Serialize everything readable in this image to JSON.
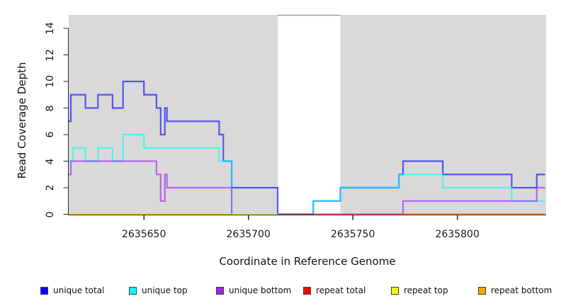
{
  "chart_data": {
    "type": "line",
    "step": true,
    "title": "",
    "xlabel": "Coordinate in Reference Genome",
    "ylabel": "Read Coverage Depth",
    "x_ticks": [
      2635650,
      2635700,
      2635750,
      2635800
    ],
    "y_ticks": [
      0,
      2,
      4,
      6,
      8,
      10,
      12,
      14
    ],
    "xlim": [
      2635614,
      2635842
    ],
    "ylim": [
      0,
      15
    ],
    "grid": false,
    "plot_bg_color": "#D9D9D9",
    "gap_region_x": [
      2635714,
      2635744
    ],
    "gap_region_color": "#FFFFFF",
    "line_alpha": 0.62,
    "legend_position": "bottom",
    "series": [
      {
        "name": "unique total",
        "color": "#0000FF",
        "paths": [
          [
            [
              2635614,
              7
            ],
            [
              2635615,
              9
            ],
            [
              2635622,
              8
            ],
            [
              2635628,
              9
            ],
            [
              2635635,
              8
            ],
            [
              2635640,
              10
            ],
            [
              2635650,
              9
            ],
            [
              2635656,
              8
            ],
            [
              2635658,
              6
            ],
            [
              2635660,
              8
            ],
            [
              2635661,
              7
            ],
            [
              2635686,
              6
            ],
            [
              2635688,
              4
            ],
            [
              2635692,
              2
            ],
            [
              2635714,
              0
            ],
            [
              2635731,
              1
            ],
            [
              2635744,
              2
            ],
            [
              2635772,
              3
            ],
            [
              2635774,
              4
            ],
            [
              2635793,
              3
            ],
            [
              2635826,
              2
            ],
            [
              2635838,
              3
            ],
            [
              2635842,
              3
            ]
          ]
        ]
      },
      {
        "name": "unique top",
        "color": "#00FFFF",
        "paths": [
          [
            [
              2635614,
              4
            ],
            [
              2635616,
              5
            ],
            [
              2635622,
              4
            ],
            [
              2635628,
              5
            ],
            [
              2635635,
              4
            ],
            [
              2635640,
              6
            ],
            [
              2635650,
              5
            ],
            [
              2635686,
              4
            ],
            [
              2635692,
              0
            ],
            [
              2635731,
              1
            ],
            [
              2635744,
              2
            ],
            [
              2635772,
              3
            ],
            [
              2635793,
              2
            ],
            [
              2635826,
              1
            ],
            [
              2635842,
              1
            ]
          ]
        ]
      },
      {
        "name": "unique bottom",
        "color": "#A020F0",
        "paths": [
          [
            [
              2635614,
              3
            ],
            [
              2635615,
              4
            ],
            [
              2635656,
              3
            ],
            [
              2635658,
              1
            ],
            [
              2635660,
              3
            ],
            [
              2635661,
              2
            ],
            [
              2635692,
              0
            ]
          ],
          [
            [
              2635774,
              0
            ],
            [
              2635774,
              1
            ],
            [
              2635838,
              2
            ],
            [
              2635842,
              2
            ]
          ]
        ]
      },
      {
        "name": "repeat total",
        "color": "#FF0000",
        "paths": [
          [
            [
              2635714,
              0
            ],
            [
              2635842,
              0
            ]
          ]
        ]
      },
      {
        "name": "repeat top",
        "color": "#FFFF00",
        "paths": [
          [
            [
              2635614,
              0
            ],
            [
              2635714,
              0
            ]
          ]
        ]
      },
      {
        "name": "repeat bottom",
        "color": "#FFA500",
        "paths": [
          [
            [
              2635614,
              0
            ],
            [
              2635692,
              0
            ]
          ],
          [
            [
              2635774,
              0
            ],
            [
              2635842,
              0
            ]
          ]
        ]
      }
    ]
  }
}
